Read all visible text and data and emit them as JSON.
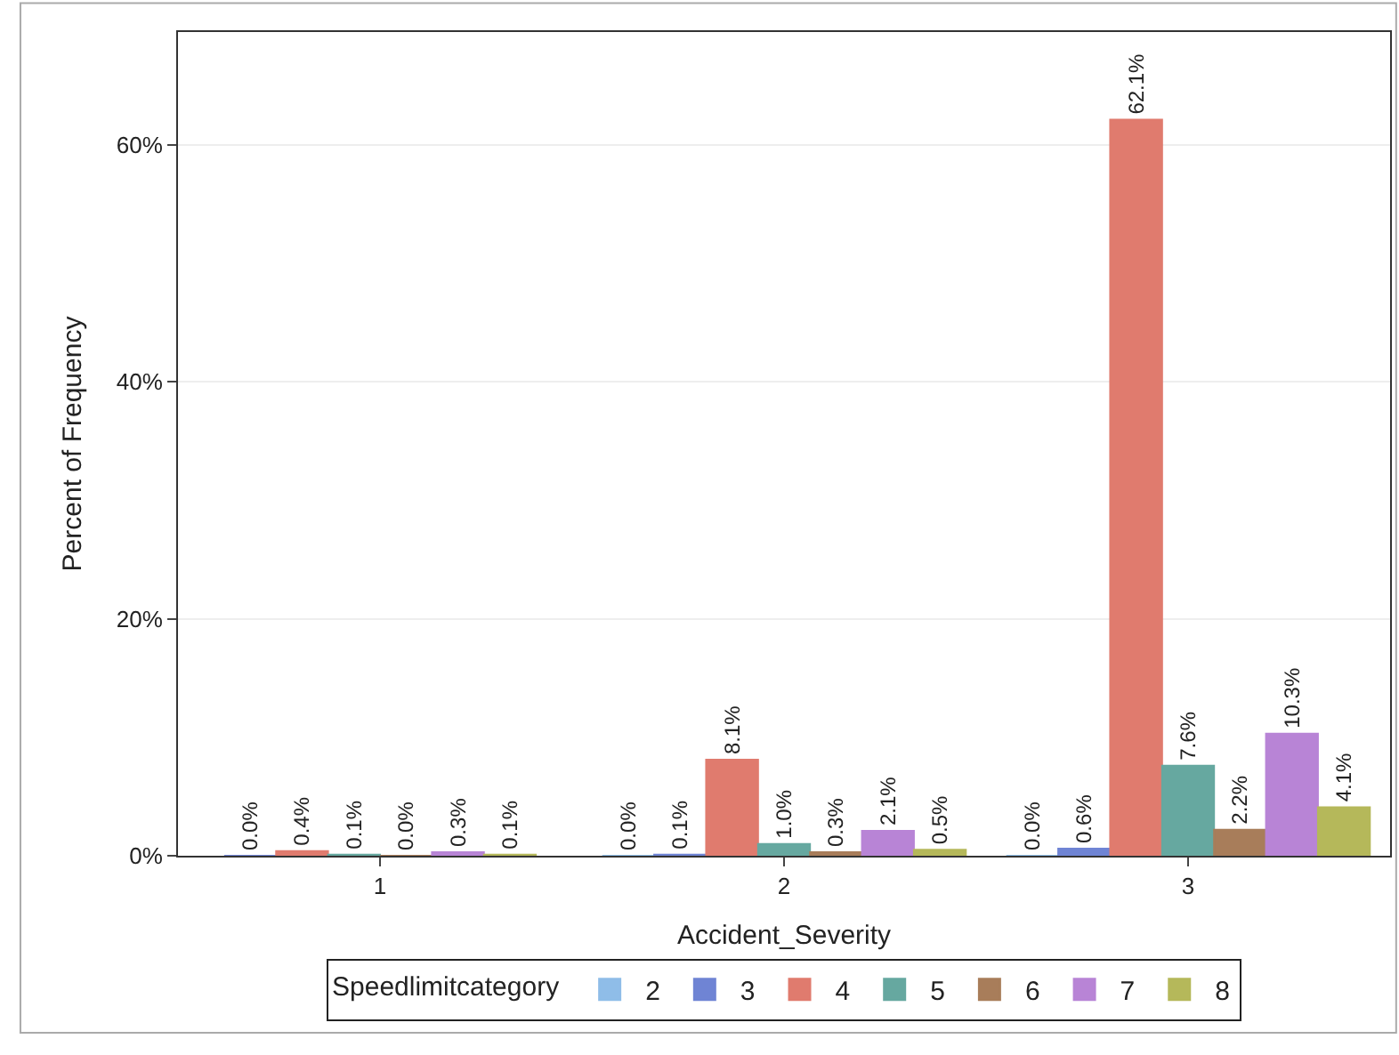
{
  "chart_data": {
    "type": "bar",
    "xlabel": "Accident_Severity",
    "ylabel": "Percent of Frequency",
    "legend_title": "Speedlimitcategory",
    "categories": [
      "1",
      "2",
      "3"
    ],
    "series": [
      {
        "name": "2",
        "color": "#8fbde8",
        "values": [
          null,
          0.0,
          0.0
        ],
        "value_labels": [
          null,
          "0.0%",
          "0.0%"
        ]
      },
      {
        "name": "3",
        "color": "#6f84d4",
        "values": [
          0.0,
          0.1,
          0.6
        ],
        "value_labels": [
          "0.0%",
          "0.1%",
          "0.6%"
        ]
      },
      {
        "name": "4",
        "color": "#e07b6e",
        "values": [
          0.4,
          8.1,
          62.1
        ],
        "value_labels": [
          "0.4%",
          "8.1%",
          "62.1%"
        ]
      },
      {
        "name": "5",
        "color": "#66a8a0",
        "values": [
          0.1,
          1.0,
          7.6
        ],
        "value_labels": [
          "0.1%",
          "1.0%",
          "7.6%"
        ]
      },
      {
        "name": "6",
        "color": "#a87d5a",
        "values": [
          0.0,
          0.3,
          2.2
        ],
        "value_labels": [
          "0.0%",
          "0.3%",
          "2.2%"
        ]
      },
      {
        "name": "7",
        "color": "#b884d6",
        "values": [
          0.3,
          2.1,
          10.3
        ],
        "value_labels": [
          "0.3%",
          "2.1%",
          "10.3%"
        ]
      },
      {
        "name": "8",
        "color": "#b5b85a",
        "values": [
          0.1,
          0.5,
          4.1
        ],
        "value_labels": [
          "0.1%",
          "0.5%",
          "4.1%"
        ]
      }
    ],
    "ylim": [
      0,
      69.5
    ],
    "yticks": [
      {
        "value": 0,
        "label": "0%"
      },
      {
        "value": 20,
        "label": "20%"
      },
      {
        "value": 40,
        "label": "40%"
      },
      {
        "value": 60,
        "label": "60%"
      }
    ],
    "grid": "y",
    "legend": "bottom"
  }
}
